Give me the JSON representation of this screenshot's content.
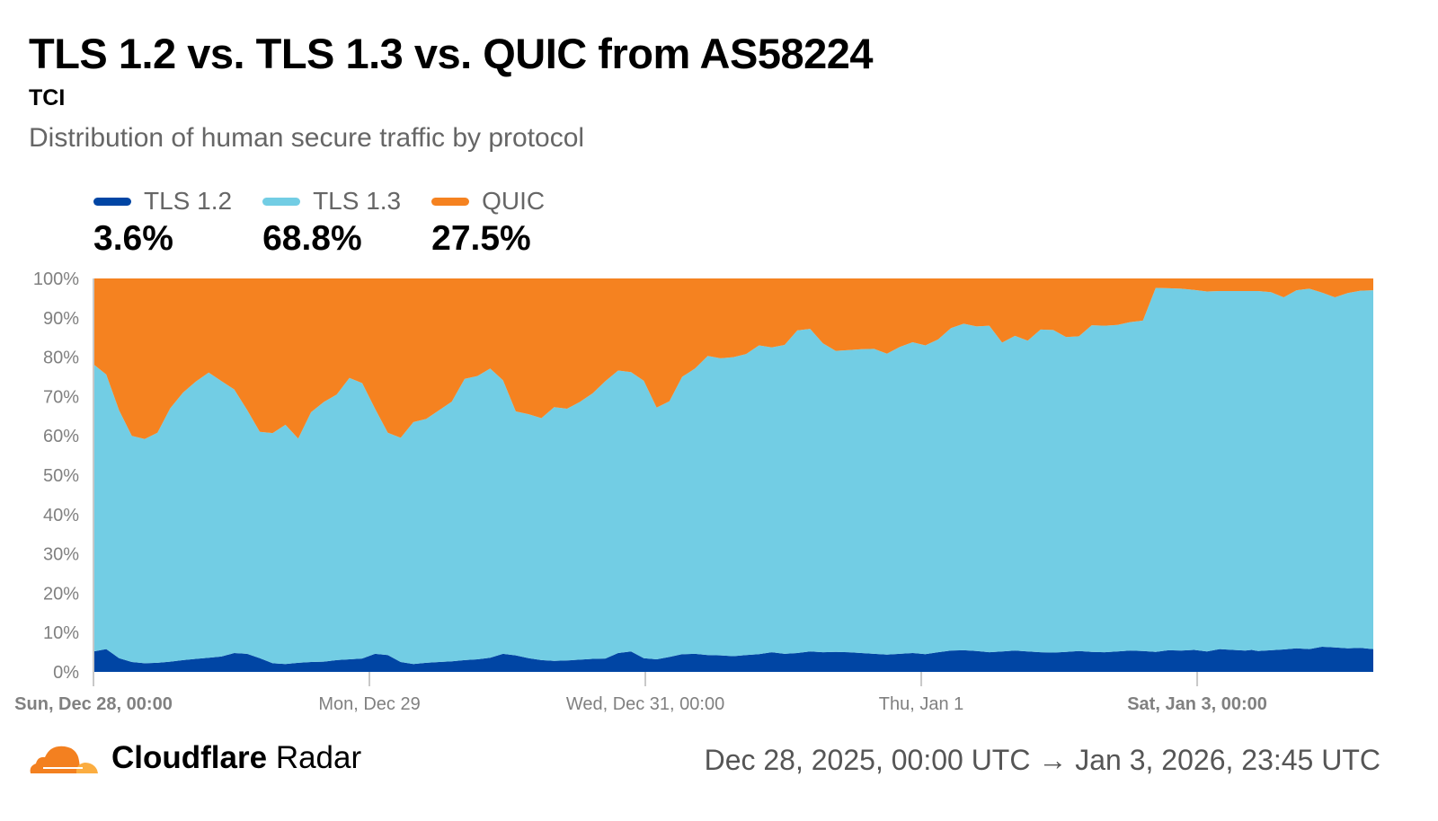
{
  "header": {
    "title": "TLS 1.2 vs. TLS 1.3 vs. QUIC from AS58224",
    "organization": "TCI",
    "description": "Distribution of human secure traffic by protocol"
  },
  "legend": [
    {
      "label": "TLS 1.2",
      "value": "3.6%",
      "color": "#0045A4"
    },
    {
      "label": "TLS 1.3",
      "value": "68.8%",
      "color": "#72CDE4"
    },
    {
      "label": "QUIC",
      "value": "27.5%",
      "color": "#F58220"
    }
  ],
  "footer": {
    "brand_bold": "Cloudflare",
    "brand_regular": "Radar",
    "date_range": "Dec 28, 2025, 00:00 UTC → Jan 3, 2026, 23:45 UTC"
  },
  "chart_data": {
    "type": "area",
    "stacked": true,
    "normalized": true,
    "title": "TLS 1.2 vs. TLS 1.3 vs. QUIC from AS58224",
    "subtitle": "Distribution of human secure traffic by protocol",
    "xlabel": "",
    "ylabel": "",
    "ylim": [
      0,
      100
    ],
    "y_ticks": [
      "0%",
      "10%",
      "20%",
      "30%",
      "40%",
      "50%",
      "60%",
      "70%",
      "80%",
      "90%",
      "100%"
    ],
    "x_ticks": [
      {
        "label": "Sun, Dec 28, 00:00",
        "pos": 0.0,
        "bold": true
      },
      {
        "label": "Mon, Dec 29",
        "pos": 0.2156,
        "bold": false
      },
      {
        "label": "Wed, Dec 31, 00:00",
        "pos": 0.4312,
        "bold": false
      },
      {
        "label": "Thu, Jan 1",
        "pos": 0.6468,
        "bold": false
      },
      {
        "label": "Sat, Jan 3, 00:00",
        "pos": 0.8624,
        "bold": true
      }
    ],
    "legend_position": "top-left",
    "grid": false,
    "x": [
      0,
      0.01,
      0.02,
      0.03,
      0.04,
      0.05,
      0.06,
      0.07,
      0.08,
      0.09,
      0.1,
      0.11,
      0.12,
      0.13,
      0.14,
      0.15,
      0.16,
      0.17,
      0.18,
      0.19,
      0.2,
      0.21,
      0.22,
      0.23,
      0.24,
      0.25,
      0.26,
      0.27,
      0.28,
      0.29,
      0.3,
      0.31,
      0.32,
      0.33,
      0.34,
      0.35,
      0.36,
      0.37,
      0.38,
      0.39,
      0.4,
      0.41,
      0.42,
      0.43,
      0.44,
      0.45,
      0.46,
      0.47,
      0.48,
      0.49,
      0.5,
      0.51,
      0.52,
      0.53,
      0.54,
      0.55,
      0.56,
      0.57,
      0.58,
      0.59,
      0.6,
      0.61,
      0.62,
      0.63,
      0.64,
      0.65,
      0.66,
      0.67,
      0.68,
      0.69,
      0.7,
      0.71,
      0.72,
      0.73,
      0.74,
      0.75,
      0.76,
      0.77,
      0.78,
      0.79,
      0.8,
      0.81,
      0.82,
      0.83,
      0.84,
      0.85,
      0.86,
      0.87,
      0.88,
      0.89,
      0.9,
      0.905,
      0.91,
      0.92,
      0.93,
      0.94,
      0.95,
      0.96,
      0.97,
      0.98,
      0.99,
      1.0
    ],
    "series": [
      {
        "name": "TLS 1.2",
        "color": "#0045A4",
        "values": [
          5.2,
          5.8,
          3.5,
          2.5,
          2.2,
          2.3,
          2.6,
          3.0,
          3.3,
          3.6,
          3.9,
          4.8,
          4.6,
          3.5,
          2.2,
          2.0,
          2.3,
          2.5,
          2.6,
          3.0,
          3.2,
          3.4,
          4.6,
          4.3,
          2.5,
          2.0,
          2.3,
          2.5,
          2.7,
          3.0,
          3.2,
          3.6,
          4.6,
          4.2,
          3.5,
          3.0,
          2.8,
          2.9,
          3.1,
          3.3,
          3.4,
          4.8,
          5.2,
          3.5,
          3.2,
          3.8,
          4.5,
          4.6,
          4.3,
          4.2,
          4.0,
          4.3,
          4.5,
          5.0,
          4.6,
          4.8,
          5.2,
          5.0,
          5.1,
          5.0,
          4.8,
          4.6,
          4.4,
          4.6,
          4.8,
          4.5,
          5.0,
          5.4,
          5.5,
          5.3,
          5.0,
          5.2,
          5.4,
          5.2,
          5.0,
          4.9,
          5.1,
          5.3,
          5.1,
          5.0,
          5.2,
          5.4,
          5.3,
          5.1,
          5.5,
          5.4,
          5.6,
          5.2,
          5.8,
          5.6,
          5.4,
          5.6,
          5.3,
          5.5,
          5.7,
          6.0,
          5.8,
          6.4,
          6.2,
          6.0,
          6.1,
          5.8
        ]
      },
      {
        "name": "TLS 1.3",
        "color": "#72CDE4",
        "values": [
          73.0,
          69.8,
          63.0,
          57.5,
          57.0,
          58.5,
          64.4,
          68.0,
          70.5,
          72.5,
          70.0,
          67.0,
          62.0,
          57.5,
          58.5,
          60.8,
          57.0,
          63.5,
          66.0,
          67.5,
          71.5,
          70.0,
          62.3,
          56.5,
          57.0,
          61.5,
          62.0,
          64.0,
          66.0,
          71.5,
          72.0,
          73.5,
          69.5,
          62.0,
          62.0,
          61.5,
          64.5,
          64.0,
          65.5,
          67.5,
          70.5,
          71.8,
          71.0,
          70.5,
          64.0,
          65.0,
          70.5,
          72.5,
          76.0,
          75.5,
          76.0,
          76.5,
          78.5,
          77.5,
          78.5,
          82.0,
          82.0,
          78.5,
          76.5,
          76.8,
          77.2,
          77.5,
          76.5,
          78.0,
          79.0,
          78.5,
          79.5,
          82.0,
          83.0,
          82.5,
          83.0,
          78.5,
          80.0,
          79.0,
          82.0,
          82.0,
          80.0,
          80.0,
          83.0,
          83.0,
          83.0,
          83.5,
          84.0,
          92.5,
          92.0,
          92.0,
          91.5,
          91.5,
          91.0,
          91.2,
          91.4,
          91.2,
          91.5,
          91.0,
          89.5,
          91.0,
          91.6,
          90.0,
          89.0,
          90.3,
          90.8,
          91.2
        ]
      },
      {
        "name": "QUIC",
        "color": "#F58220",
        "values": [
          21.8,
          24.4,
          33.5,
          40.0,
          40.8,
          39.2,
          33.0,
          29.0,
          26.2,
          23.9,
          26.1,
          28.2,
          33.4,
          39.0,
          39.3,
          37.2,
          40.7,
          34.0,
          31.4,
          29.5,
          25.3,
          26.6,
          33.1,
          39.2,
          40.5,
          36.5,
          35.7,
          33.5,
          31.3,
          25.5,
          24.8,
          22.9,
          25.9,
          33.8,
          34.5,
          35.5,
          32.7,
          33.1,
          31.4,
          29.2,
          26.1,
          23.4,
          23.8,
          26.0,
          32.8,
          31.2,
          25.0,
          22.9,
          19.7,
          20.3,
          20.0,
          19.2,
          17.0,
          17.5,
          16.9,
          13.2,
          12.8,
          16.5,
          18.4,
          18.2,
          18.0,
          17.9,
          19.1,
          17.4,
          16.2,
          17.0,
          15.5,
          12.6,
          11.5,
          12.2,
          12.0,
          16.3,
          14.6,
          15.8,
          13.0,
          13.1,
          14.9,
          14.7,
          11.9,
          12.0,
          11.8,
          11.1,
          10.7,
          2.4,
          2.5,
          2.6,
          2.9,
          3.3,
          3.2,
          3.2,
          3.2,
          3.2,
          3.2,
          3.5,
          4.8,
          3.0,
          2.6,
          3.6,
          4.8,
          3.7,
          3.1,
          3.0
        ]
      }
    ],
    "summary": {
      "TLS 1.2": 3.6,
      "TLS 1.3": 68.8,
      "QUIC": 27.5
    }
  }
}
